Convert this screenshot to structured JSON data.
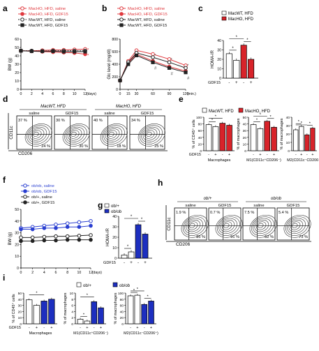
{
  "panels": [
    {
      "letter": "a",
      "type": "line",
      "ylabel": "BW (g)",
      "xlabel": "(days)",
      "x": [
        0,
        2,
        4,
        6,
        8,
        10,
        12
      ],
      "ylim": [
        0,
        60
      ],
      "yticks": [
        0,
        10,
        20,
        30,
        40,
        50,
        60
      ],
      "legend": [
        {
          "name": "MacHO, HFD, saline",
          "color": "#e0393e",
          "marker": "circle-open",
          "dash": false
        },
        {
          "name": "MacHO, HFD, GDF15",
          "color": "#e0393e",
          "marker": "circle-filled",
          "dash": false
        },
        {
          "name": "MacWT, HFD, saline",
          "color": "#222222",
          "marker": "circle-open",
          "dash": true
        },
        {
          "name": "MacWT, HFD, GDF15",
          "color": "#222222",
          "marker": "square-filled",
          "dash": false
        }
      ],
      "series": [
        {
          "values": [
            46,
            46,
            46.5,
            47,
            47,
            47.5,
            48
          ]
        },
        {
          "values": [
            46,
            45.5,
            45,
            44.5,
            44,
            43.5,
            42
          ]
        },
        {
          "values": [
            46,
            46,
            45.5,
            46,
            46,
            46,
            46
          ]
        },
        {
          "values": [
            46,
            45.5,
            45.5,
            45.5,
            45,
            45,
            45
          ]
        }
      ],
      "annotations": [
        "*",
        "*"
      ]
    },
    {
      "letter": "b",
      "type": "line",
      "ylabel": "Glc level (mg/dl)",
      "xlabel": "(min.)",
      "x": [
        0,
        15,
        30,
        60,
        90,
        120
      ],
      "ylim": [
        0,
        800
      ],
      "yticks": [
        0,
        200,
        400,
        600,
        800
      ],
      "legend": [
        {
          "name": "MacHO, HFD, saline",
          "color": "#e0393e",
          "marker": "circle-open"
        },
        {
          "name": "MacHO, HFD, GDF15",
          "color": "#e0393e",
          "marker": "circle-filled"
        },
        {
          "name": "MacWT, HFD, saline",
          "color": "#222222",
          "marker": "circle-open"
        },
        {
          "name": "MacWT, HFD, GDF15",
          "color": "#222222",
          "marker": "square-filled"
        }
      ],
      "series": [
        {
          "values": [
            140,
            450,
            620,
            560,
            480,
            380
          ]
        },
        {
          "values": [
            140,
            420,
            560,
            450,
            360,
            290
          ]
        },
        {
          "values": [
            140,
            430,
            580,
            510,
            430,
            340
          ]
        },
        {
          "values": [
            140,
            400,
            540,
            430,
            340,
            270
          ]
        }
      ],
      "annotations": [
        "*",
        "*",
        "*",
        "#",
        "#",
        "#"
      ]
    },
    {
      "letter": "c",
      "type": "bar",
      "ylabel": "HOMA-IR",
      "ylim": [
        0,
        40
      ],
      "yticks": [
        0,
        10,
        20,
        30,
        40
      ],
      "legend": [
        {
          "name": "MacWT, HFD",
          "color": "#ffffff"
        },
        {
          "name": "MacHO, HFD",
          "color": "#d8232a"
        }
      ],
      "groups": [
        {
          "bars": [
            {
              "value": 26,
              "color": "#ffffff"
            },
            {
              "value": 19,
              "color": "#ffffff"
            }
          ]
        },
        {
          "bars": [
            {
              "value": 35,
              "color": "#d8232a"
            },
            {
              "value": 20,
              "color": "#d8232a"
            }
          ]
        }
      ],
      "treatment_label": "GDF15",
      "treatment_signs": [
        "-",
        "+",
        "-",
        "+"
      ],
      "annotations": [
        "*",
        "*",
        "*"
      ]
    },
    {
      "letter": "d",
      "type": "flow",
      "groups": [
        {
          "title": "MacWT, HFD",
          "plots": [
            {
              "label": "saline",
              "q_tl": "37 %",
              "q_br": "24 %"
            },
            {
              "label": "GDF15",
              "q_tl": "30 %",
              "q_br": "30 %"
            }
          ]
        },
        {
          "title": "MacHO, HFD",
          "plots": [
            {
              "label": "saline",
              "q_tl": "40 %",
              "q_br": "18 %"
            },
            {
              "label": "GDF15",
              "q_tl": "34 %",
              "q_br": "25 %"
            }
          ]
        }
      ],
      "ylabel": "CD11c",
      "xlabel": "CD206"
    },
    {
      "letter": "e",
      "type": "bar-multi",
      "legend": [
        {
          "name": "MacWT, HFD",
          "color": "#ffffff"
        },
        {
          "name": "MacHO, HFD",
          "color": "#d8232a"
        }
      ],
      "subcharts": [
        {
          "ylabel": "% of CD45⁺ cells",
          "xlabel": "Macrophages",
          "ylim": [
            0,
            100
          ],
          "yticks": [
            0,
            20,
            40,
            60,
            80,
            100
          ],
          "values": [
            78,
            72,
            82,
            76
          ],
          "colors": [
            "#ffffff",
            "#ffffff",
            "#d8232a",
            "#d8232a"
          ],
          "annotations": [
            "*",
            "*"
          ]
        },
        {
          "ylabel": "% of macrophages",
          "xlabel": "M1(CD11c⁺CD206⁻)",
          "ylim": [
            0,
            50
          ],
          "yticks": [
            0,
            10,
            20,
            30,
            40,
            50
          ],
          "values": [
            39,
            33,
            44,
            35
          ],
          "colors": [
            "#ffffff",
            "#ffffff",
            "#d8232a",
            "#d8232a"
          ],
          "annotations": [
            "*",
            "*",
            "*"
          ]
        },
        {
          "ylabel": "% of macrophages",
          "xlabel": "M2(CD11c⁻CD206⁺)",
          "ylim": [
            0,
            40
          ],
          "yticks": [
            0,
            10,
            20,
            30,
            40
          ],
          "values": [
            25,
            29,
            19,
            27
          ],
          "colors": [
            "#ffffff",
            "#ffffff",
            "#d8232a",
            "#d8232a"
          ],
          "annotations": [
            "*",
            "*",
            "*"
          ]
        }
      ],
      "treatment_label": "GDF15",
      "treatment_signs": [
        "-",
        "+",
        "-",
        "+"
      ]
    },
    {
      "letter": "f",
      "type": "line",
      "ylabel": "BW (g)",
      "xlabel": "(days)",
      "x": [
        0,
        2,
        4,
        6,
        8,
        10,
        12
      ],
      "ylim": [
        0,
        50
      ],
      "yticks": [
        0,
        10,
        20,
        30,
        40,
        50
      ],
      "legend": [
        {
          "name": "ob/ob, saline",
          "color": "#2a3fd1",
          "marker": "circle-open"
        },
        {
          "name": "ob/ob, GDF15",
          "color": "#2a3fd1",
          "marker": "circle-filled"
        },
        {
          "name": "ob/+, saline",
          "color": "#222222",
          "marker": "circle-open"
        },
        {
          "name": "ob/+, GDF15",
          "color": "#222222",
          "marker": "circle-filled"
        }
      ],
      "series": [
        {
          "values": [
            34,
            35,
            36,
            37,
            38,
            39,
            40
          ]
        },
        {
          "values": [
            33,
            33,
            34,
            34,
            35,
            35,
            36
          ]
        },
        {
          "values": [
            26,
            26,
            26.5,
            27,
            27,
            27.5,
            28
          ]
        },
        {
          "values": [
            23,
            23,
            23.5,
            23.5,
            24,
            24,
            24
          ]
        }
      ]
    },
    {
      "letter": "g",
      "type": "bar",
      "ylabel": "HOMA-IR",
      "ylim": [
        0,
        40
      ],
      "yticks": [
        0,
        10,
        20,
        30,
        40
      ],
      "legend": [
        {
          "name": "ob/+",
          "color": "#ffffff"
        },
        {
          "name": "ob/ob",
          "color": "#1d2fc0"
        }
      ],
      "groups": [
        {
          "bars": [
            {
              "value": 3,
              "color": "#ffffff"
            },
            {
              "value": 6,
              "color": "#ffffff"
            }
          ]
        },
        {
          "bars": [
            {
              "value": 32,
              "color": "#1d2fc0"
            },
            {
              "value": 23,
              "color": "#1d2fc0"
            }
          ]
        }
      ],
      "treatment_label": "GDF15",
      "treatment_signs": [
        "-",
        "+",
        "-",
        "+"
      ],
      "annotations": [
        "*",
        "*",
        "*"
      ]
    },
    {
      "letter": "h",
      "type": "flow",
      "groups": [
        {
          "title": "ob/+",
          "plots": [
            {
              "label": "saline",
              "q_tl": "1.9 %",
              "q_br": "85 %"
            },
            {
              "label": "GDF15",
              "q_tl": "0.7 %",
              "q_br": "91 %"
            }
          ]
        },
        {
          "title": "ob/ob",
          "plots": [
            {
              "label": "saline",
              "q_tl": "7.5 %",
              "q_br": "62 %"
            },
            {
              "label": "GDF15",
              "q_tl": "5.4 %",
              "q_br": "73 %"
            }
          ]
        }
      ],
      "ylabel": "CD11c",
      "xlabel": "CD206"
    },
    {
      "letter": "i",
      "type": "bar-multi",
      "legend": [
        {
          "name": "ob/+",
          "color": "#ffffff"
        },
        {
          "name": "ob/ob",
          "color": "#1d2fc0"
        }
      ],
      "subcharts": [
        {
          "ylabel": "% of CD45⁺ cells",
          "xlabel": "Macrophages",
          "ylim": [
            0,
            50
          ],
          "yticks": [
            0,
            10,
            20,
            30,
            40,
            50
          ],
          "values": [
            39,
            30,
            37,
            40
          ],
          "colors": [
            "#ffffff",
            "#ffffff",
            "#1d2fc0",
            "#1d2fc0"
          ],
          "annotations": [
            "*"
          ]
        },
        {
          "ylabel": "% of macrophages",
          "xlabel": "M1(CD11c⁺CD206⁻)",
          "ylim": [
            0,
            10
          ],
          "yticks": [
            0,
            2,
            4,
            6,
            8,
            10
          ],
          "values": [
            1.5,
            0.9,
            7.2,
            5.2
          ],
          "colors": [
            "#ffffff",
            "#ffffff",
            "#1d2fc0",
            "#1d2fc0"
          ],
          "annotations": [
            "*",
            "*"
          ]
        },
        {
          "ylabel": "% of macrophages",
          "xlabel": "M2(CD11c⁻CD206⁺)",
          "ylim": [
            0,
            100
          ],
          "yticks": [
            0,
            20,
            40,
            60,
            80,
            100
          ],
          "values": [
            91,
            93,
            63,
            74
          ],
          "colors": [
            "#ffffff",
            "#ffffff",
            "#1d2fc0",
            "#1d2fc0"
          ],
          "annotations": [
            "*",
            "*",
            "*"
          ]
        }
      ],
      "treatment_label": "GDF15",
      "treatment_signs": [
        "-",
        "+",
        "-",
        "+"
      ]
    }
  ]
}
